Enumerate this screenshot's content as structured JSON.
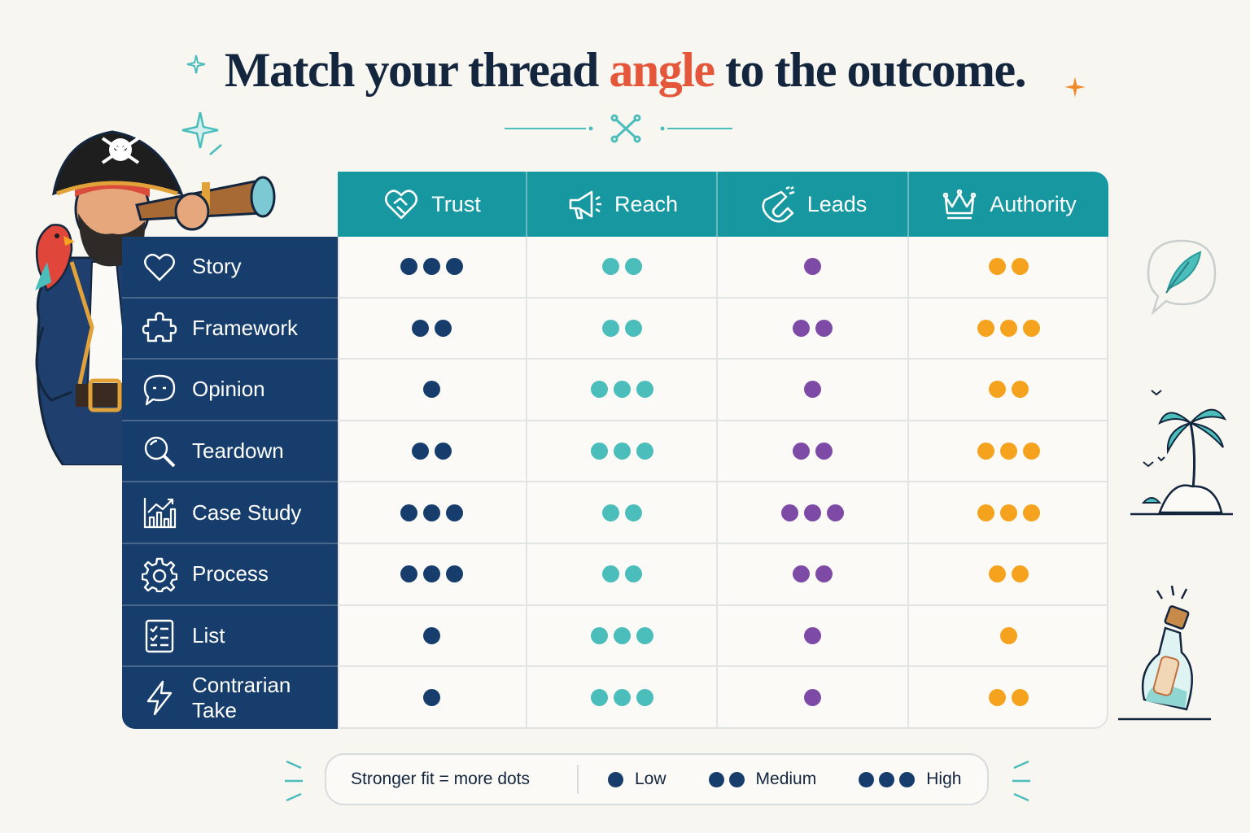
{
  "title": {
    "before": "Match your thread ",
    "accent": "angle",
    "after": " to the outcome."
  },
  "columns": [
    {
      "label": "Trust",
      "icon": "heart-handshake-icon",
      "color": "#163d6b"
    },
    {
      "label": "Reach",
      "icon": "megaphone-icon",
      "color": "#4bbdbb"
    },
    {
      "label": "Leads",
      "icon": "magnet-icon",
      "color": "#7d4ba6"
    },
    {
      "label": "Authority",
      "icon": "crown-icon",
      "color": "#f5a31e"
    }
  ],
  "rows": [
    {
      "label": "Story",
      "icon": "heart-icon",
      "scores": [
        3,
        2,
        1,
        2
      ]
    },
    {
      "label": "Framework",
      "icon": "puzzle-icon",
      "scores": [
        2,
        2,
        2,
        3
      ]
    },
    {
      "label": "Opinion",
      "icon": "speech-bubble-icon",
      "scores": [
        1,
        3,
        1,
        2
      ]
    },
    {
      "label": "Teardown",
      "icon": "magnifier-icon",
      "scores": [
        2,
        3,
        2,
        3
      ]
    },
    {
      "label": "Case Study",
      "icon": "growth-chart-icon",
      "scores": [
        3,
        2,
        3,
        3
      ]
    },
    {
      "label": "Process",
      "icon": "gear-icon",
      "scores": [
        3,
        2,
        2,
        2
      ]
    },
    {
      "label": "List",
      "icon": "checklist-icon",
      "scores": [
        1,
        3,
        1,
        1
      ]
    },
    {
      "label": "Contrarian Take",
      "icon": "lightning-icon",
      "scores": [
        1,
        3,
        1,
        2
      ]
    }
  ],
  "legend": {
    "lead": "Stronger fit = more dots",
    "low": "Low",
    "medium": "Medium",
    "high": "High"
  },
  "colors": {
    "navy": "#163d6b",
    "teal": "#1798a0",
    "accent": "#e4573b",
    "background": "#f8f6f1"
  }
}
